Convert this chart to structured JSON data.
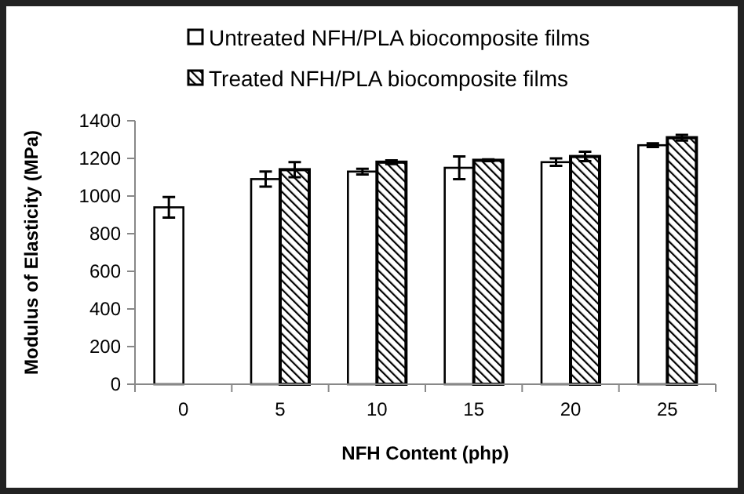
{
  "chart_data": {
    "type": "bar",
    "xlabel": "NFH Content (php)",
    "ylabel": "Modulus of Elasticity (MPa)",
    "categories": [
      "0",
      "5",
      "10",
      "15",
      "20",
      "25"
    ],
    "series": [
      {
        "name": "Untreated NFH/PLA biocomposite films",
        "color": "#ffffff",
        "values": [
          940,
          1090,
          1130,
          1150,
          1180,
          1270
        ],
        "errors": [
          55,
          40,
          15,
          60,
          20,
          10
        ]
      },
      {
        "name": "Treated NFH/PLA biocomposite films",
        "color": "#000000",
        "values": [
          null,
          1140,
          1180,
          1190,
          1210,
          1310
        ],
        "errors": [
          null,
          40,
          10,
          5,
          25,
          15
        ]
      }
    ],
    "ylim": [
      0,
      1400
    ],
    "yticks": [
      0,
      200,
      400,
      600,
      800,
      1000,
      1200,
      1400
    ],
    "legend": "top",
    "grid": false
  }
}
